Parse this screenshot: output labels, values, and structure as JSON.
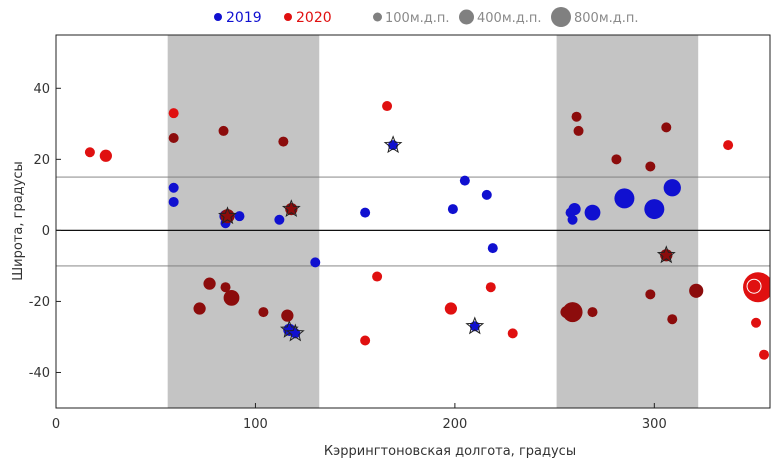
{
  "chart_data": {
    "type": "scatter",
    "xlabel": "Кэррингтоновская долгота, градусы",
    "ylabel": "Широта, градусы",
    "xlim": [
      0,
      358
    ],
    "ylim": [
      -50,
      55
    ],
    "xticks": [
      0,
      100,
      200,
      300
    ],
    "yticks": [
      -40,
      -20,
      0,
      20,
      40
    ],
    "shaded_x_ranges": [
      [
        56,
        132
      ],
      [
        251,
        322
      ]
    ],
    "horizontal_lines": [
      15,
      0,
      -10
    ],
    "grid": false,
    "legend": {
      "placement": "top",
      "series": [
        {
          "label": "2019",
          "color": "#1010d0"
        },
        {
          "label": "2020",
          "color": "#e01010"
        }
      ],
      "sizes": [
        {
          "label": "100м.д.п.",
          "value": 100
        },
        {
          "label": "400м.д.п.",
          "value": 400
        },
        {
          "label": "800м.д.п.",
          "value": 800
        }
      ],
      "size_color": "#808080"
    },
    "series": [
      {
        "label": "2019",
        "color": "#1010d0",
        "points": [
          {
            "x": 59,
            "y": 12,
            "size": 100
          },
          {
            "x": 59,
            "y": 8,
            "size": 100
          },
          {
            "x": 85,
            "y": 2,
            "size": 100
          },
          {
            "x": 85,
            "y": 4,
            "size": 150
          },
          {
            "x": 92,
            "y": 4,
            "size": 100
          },
          {
            "x": 112,
            "y": 3,
            "size": 100
          },
          {
            "x": 117,
            "y": -28,
            "size": 150,
            "star": true
          },
          {
            "x": 120,
            "y": -29,
            "size": 100,
            "star": true
          },
          {
            "x": 130,
            "y": -9,
            "size": 100
          },
          {
            "x": 155,
            "y": 5,
            "size": 100
          },
          {
            "x": 169,
            "y": 24,
            "size": 100,
            "star": true
          },
          {
            "x": 199,
            "y": 6,
            "size": 100
          },
          {
            "x": 205,
            "y": 14,
            "size": 100
          },
          {
            "x": 210,
            "y": -27,
            "size": 100,
            "star": true
          },
          {
            "x": 216,
            "y": 10,
            "size": 100
          },
          {
            "x": 219,
            "y": -5,
            "size": 100
          },
          {
            "x": 258,
            "y": 5,
            "size": 100
          },
          {
            "x": 259,
            "y": 3,
            "size": 100
          },
          {
            "x": 260,
            "y": 6,
            "size": 150
          },
          {
            "x": 269,
            "y": 5,
            "size": 250
          },
          {
            "x": 285,
            "y": 9,
            "size": 400
          },
          {
            "x": 300,
            "y": 6,
            "size": 400
          },
          {
            "x": 309,
            "y": 12,
            "size": 300
          }
        ]
      },
      {
        "label": "2020",
        "color": "#e01010",
        "points": [
          {
            "x": 17,
            "y": 22,
            "size": 100
          },
          {
            "x": 25,
            "y": 21,
            "size": 150
          },
          {
            "x": 59,
            "y": 33,
            "size": 100
          },
          {
            "x": 59,
            "y": 26,
            "size": 100,
            "dark": true
          },
          {
            "x": 72,
            "y": -22,
            "size": 150,
            "dark": true
          },
          {
            "x": 77,
            "y": -15,
            "size": 150,
            "dark": true
          },
          {
            "x": 84,
            "y": 28,
            "size": 100,
            "dark": true
          },
          {
            "x": 85,
            "y": -16,
            "size": 100,
            "dark": true
          },
          {
            "x": 86,
            "y": 4,
            "size": 200,
            "dark": true,
            "star": true
          },
          {
            "x": 88,
            "y": -19,
            "size": 250,
            "dark": true
          },
          {
            "x": 104,
            "y": -23,
            "size": 100,
            "dark": true
          },
          {
            "x": 114,
            "y": 25,
            "size": 100,
            "dark": true
          },
          {
            "x": 116,
            "y": -24,
            "size": 150,
            "dark": true
          },
          {
            "x": 118,
            "y": 6,
            "size": 150,
            "dark": true,
            "star": true
          },
          {
            "x": 155,
            "y": -31,
            "size": 100
          },
          {
            "x": 161,
            "y": -13,
            "size": 100
          },
          {
            "x": 166,
            "y": 35,
            "size": 100
          },
          {
            "x": 198,
            "y": -22,
            "size": 150
          },
          {
            "x": 218,
            "y": -16,
            "size": 100
          },
          {
            "x": 229,
            "y": -29,
            "size": 100
          },
          {
            "x": 256,
            "y": -23,
            "size": 150,
            "dark": true
          },
          {
            "x": 259,
            "y": -23,
            "size": 400,
            "dark": true
          },
          {
            "x": 261,
            "y": 32,
            "size": 100,
            "dark": true
          },
          {
            "x": 262,
            "y": 28,
            "size": 100,
            "dark": true
          },
          {
            "x": 269,
            "y": -23,
            "size": 100,
            "dark": true
          },
          {
            "x": 281,
            "y": 20,
            "size": 100,
            "dark": true
          },
          {
            "x": 298,
            "y": 18,
            "size": 100,
            "dark": true
          },
          {
            "x": 298,
            "y": -18,
            "size": 100,
            "dark": true
          },
          {
            "x": 306,
            "y": 29,
            "size": 100,
            "dark": true
          },
          {
            "x": 306,
            "y": -7,
            "size": 150,
            "dark": true,
            "star": true
          },
          {
            "x": 309,
            "y": -25,
            "size": 100,
            "dark": true
          },
          {
            "x": 321,
            "y": -17,
            "size": 200,
            "dark": true
          },
          {
            "x": 337,
            "y": 24,
            "size": 100
          },
          {
            "x": 351,
            "y": -26,
            "size": 100
          },
          {
            "x": 352,
            "y": -16,
            "size": 900,
            "ring": true
          },
          {
            "x": 355,
            "y": -35,
            "size": 100
          }
        ]
      }
    ]
  }
}
